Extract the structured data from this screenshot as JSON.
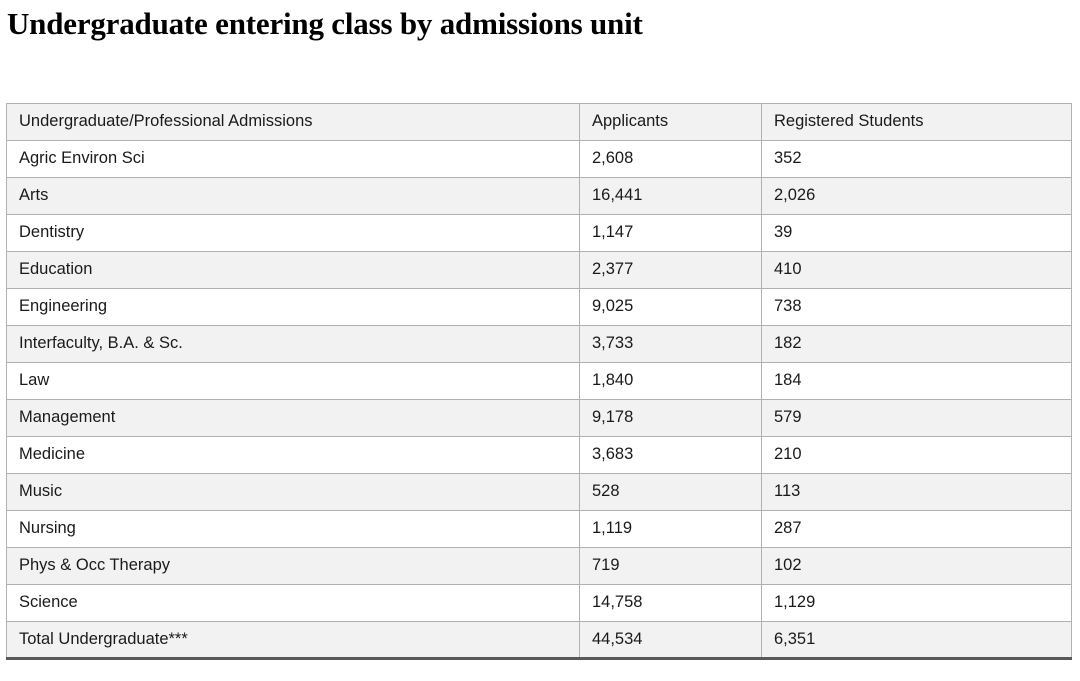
{
  "title": "Undergraduate entering class by admissions unit",
  "table": {
    "columns": [
      "Undergraduate/Professional Admissions",
      "Applicants",
      "Registered Students"
    ],
    "rows": [
      {
        "unit": "Agric Environ Sci",
        "applicants": "2,608",
        "registered": "352"
      },
      {
        "unit": "Arts",
        "applicants": "16,441",
        "registered": "2,026"
      },
      {
        "unit": "Dentistry",
        "applicants": "1,147",
        "registered": "39"
      },
      {
        "unit": "Education",
        "applicants": "2,377",
        "registered": "410"
      },
      {
        "unit": "Engineering",
        "applicants": "9,025",
        "registered": "738"
      },
      {
        "unit": "Interfaculty, B.A. & Sc.",
        "applicants": "3,733",
        "registered": "182"
      },
      {
        "unit": "Law",
        "applicants": "1,840",
        "registered": "184"
      },
      {
        "unit": "Management",
        "applicants": "9,178",
        "registered": "579"
      },
      {
        "unit": "Medicine",
        "applicants": "3,683",
        "registered": "210"
      },
      {
        "unit": "Music",
        "applicants": "528",
        "registered": "113"
      },
      {
        "unit": "Nursing",
        "applicants": "1,119",
        "registered": "287"
      },
      {
        "unit": "Phys & Occ Therapy",
        "applicants": "719",
        "registered": "102"
      },
      {
        "unit": "Science",
        "applicants": "14,758",
        "registered": "1,129"
      },
      {
        "unit": "Total Undergraduate***",
        "applicants": "44,534",
        "registered": "6,351"
      }
    ]
  },
  "colors": {
    "header_bg": "#f2f2f3",
    "row_stripe": "#f2f2f3",
    "row_white": "#ffffff",
    "cell_border": "#b1b1b3",
    "outer_border": "#9d9d9f",
    "bottom_border": "#59595b",
    "text": "#1a1a1a",
    "title_text": "#000000"
  },
  "chart_data": {
    "type": "table",
    "title": "Undergraduate entering class by admissions unit",
    "columns": [
      "Undergraduate/Professional Admissions",
      "Applicants",
      "Registered Students"
    ],
    "categories": [
      "Agric Environ Sci",
      "Arts",
      "Dentistry",
      "Education",
      "Engineering",
      "Interfaculty, B.A. & Sc.",
      "Law",
      "Management",
      "Medicine",
      "Music",
      "Nursing",
      "Phys & Occ Therapy",
      "Science",
      "Total Undergraduate***"
    ],
    "series": [
      {
        "name": "Applicants",
        "values": [
          2608,
          16441,
          1147,
          2377,
          9025,
          3733,
          1840,
          9178,
          3683,
          528,
          1119,
          719,
          14758,
          44534
        ]
      },
      {
        "name": "Registered Students",
        "values": [
          352,
          2026,
          39,
          410,
          738,
          182,
          184,
          579,
          210,
          113,
          287,
          102,
          1129,
          6351
        ]
      }
    ],
    "notes": "Last row is the total; *** footnote marker shown on screen with no visible footnote text."
  }
}
